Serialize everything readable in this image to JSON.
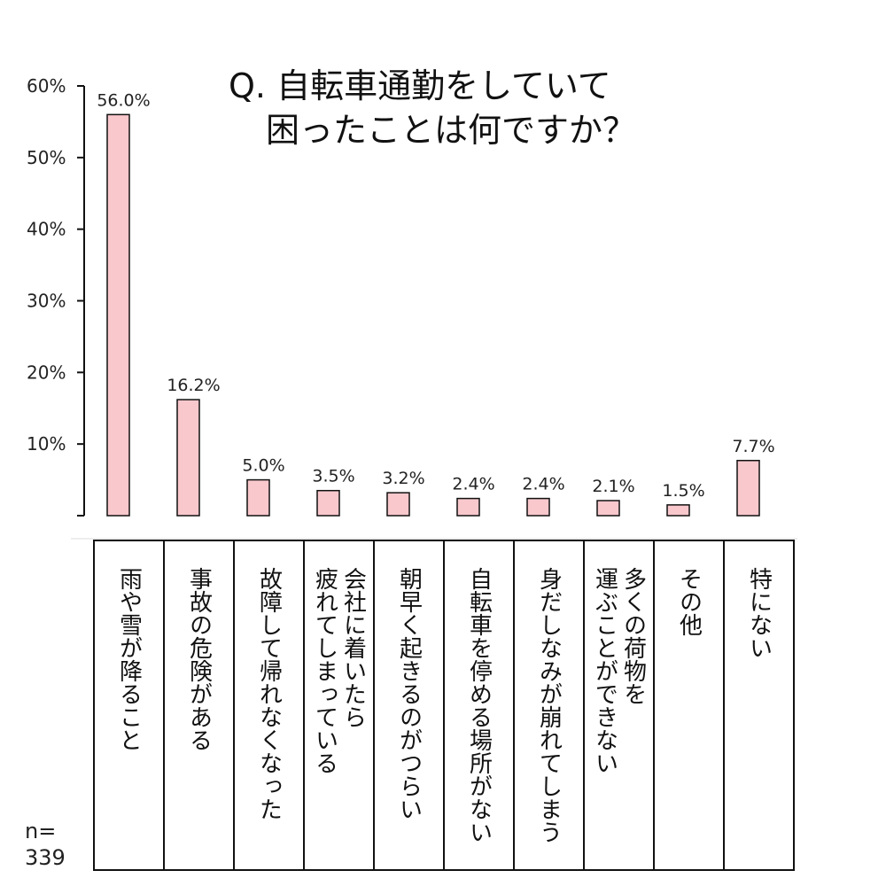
{
  "chart_data": {
    "type": "bar",
    "title_lines": [
      "Q. 自転車通勤をしていて",
      "困ったことは何ですか？"
    ],
    "ylim": [
      0,
      60
    ],
    "yticks": [
      "10%",
      "20%",
      "30%",
      "40%",
      "50%",
      "60%"
    ],
    "categories": [
      [
        "雨や雪が降ること"
      ],
      [
        "事故の危険がある"
      ],
      [
        "故障して帰れなくなった"
      ],
      [
        "会社に着いたら",
        "疲れてしまっている"
      ],
      [
        "朝早く起きるのがつらい"
      ],
      [
        "自転車を停める場所がない"
      ],
      [
        "身だしなみが崩れてしまう"
      ],
      [
        "多くの荷物を",
        "運ぶことができない"
      ],
      [
        "その他"
      ],
      [
        "特にない"
      ]
    ],
    "values": [
      56.0,
      16.2,
      5.0,
      3.5,
      3.2,
      2.4,
      2.4,
      2.1,
      1.5,
      7.7
    ],
    "value_labels": [
      "56.0%",
      "16.2%",
      "5.0%",
      "3.5%",
      "3.2%",
      "2.4%",
      "2.4%",
      "2.1%",
      "1.5%",
      "7.7%"
    ],
    "n_label": [
      "n=",
      "339"
    ],
    "grid": false,
    "legend": "none",
    "colors": {
      "bar_fill": "#f8c8cc",
      "bar_stroke": "#111111",
      "axis": "#111111"
    }
  }
}
